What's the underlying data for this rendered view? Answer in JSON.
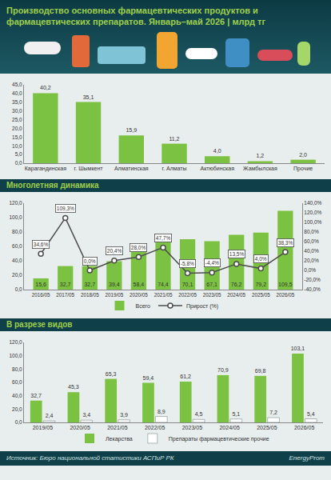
{
  "header": {
    "title": "Производство основных фармацевтических продуктов и фармацевтических препаратов. Январь–май 2026 | млрд тг"
  },
  "chart_data": [
    {
      "type": "bar",
      "categories": [
        "Карагандинская",
        "г. Шымкент",
        "Алматинская",
        "г. Алматы",
        "Актюбинская",
        "Жамбылская",
        "Прочие"
      ],
      "values": [
        40.2,
        35.1,
        15.9,
        11.2,
        4.0,
        1.2,
        2.0
      ],
      "value_labels": [
        "40,2",
        "35,1",
        "15,9",
        "11,2",
        "4,0",
        "1,2",
        "2,0"
      ],
      "color": "#7cc242",
      "ylim": [
        0,
        45
      ],
      "yticks": [
        {
          "value": 0,
          "label": "0,0"
        },
        {
          "value": 5,
          "label": "5,0"
        },
        {
          "value": 10,
          "label": "10,0"
        },
        {
          "value": 15,
          "label": "15,0"
        },
        {
          "value": 20,
          "label": "20,0"
        },
        {
          "value": 25,
          "label": "25,0"
        },
        {
          "value": 30,
          "label": "30,0"
        },
        {
          "value": 35,
          "label": "35,0"
        },
        {
          "value": 40,
          "label": "40,0"
        },
        {
          "value": 45,
          "label": "45,0"
        }
      ],
      "grid": false,
      "data_labels": true
    },
    {
      "type": "bar",
      "title": "Многолетняя динамика",
      "categories": [
        "2016/05",
        "2017/05",
        "2018/05",
        "2019/05",
        "2020/05",
        "2021/05",
        "2022/05",
        "2023/05",
        "2024/05",
        "2025/05",
        "2026/05"
      ],
      "series": [
        {
          "name": "Всего",
          "type": "bar",
          "color": "#7cc242",
          "values": [
            15.6,
            32.7,
            32.7,
            39.4,
            58.4,
            74.4,
            70.1,
            67.1,
            76.2,
            79.2,
            109.5
          ],
          "value_labels": [
            "15,6",
            "32,7",
            "32,7",
            "39,4",
            "58,4",
            "74,4",
            "70,1",
            "67,1",
            "76,2",
            "79,2",
            "109,5"
          ]
        },
        {
          "name": "Прирост (%)",
          "type": "line",
          "axis": "y2",
          "color": "#4d4d4d",
          "marker": "circle",
          "values": [
            34.6,
            109.3,
            0.0,
            20.4,
            28.0,
            47.7,
            -5.8,
            -4.4,
            13.5,
            4.0,
            38.3
          ],
          "value_labels": [
            "34,6%",
            "109,3%",
            "0,0%",
            "20,4%",
            "28,0%",
            "47,7%",
            "-5,8%",
            "-4,4%",
            "13,5%",
            "4,0%",
            "38,3%"
          ]
        }
      ],
      "ylim": [
        0,
        120
      ],
      "yticks": [
        {
          "value": 0,
          "label": "0,0"
        },
        {
          "value": 20,
          "label": "20,0"
        },
        {
          "value": 40,
          "label": "40,0"
        },
        {
          "value": 60,
          "label": "60,0"
        },
        {
          "value": 80,
          "label": "80,0"
        },
        {
          "value": 100,
          "label": "100,0"
        },
        {
          "value": 120,
          "label": "120,0"
        }
      ],
      "y2lim": [
        -40,
        140
      ],
      "y2ticks": [
        {
          "value": -40,
          "label": "-40,0%"
        },
        {
          "value": -20,
          "label": "-20,0%"
        },
        {
          "value": 0,
          "label": "0,0%"
        },
        {
          "value": 20,
          "label": "20,0%"
        },
        {
          "value": 40,
          "label": "40,0%"
        },
        {
          "value": 60,
          "label": "60,0%"
        },
        {
          "value": 80,
          "label": "80,0%"
        },
        {
          "value": 100,
          "label": "100,0%"
        },
        {
          "value": 120,
          "label": "120,0%"
        },
        {
          "value": 140,
          "label": "140,0%"
        }
      ],
      "legend": "bottom",
      "grid": false,
      "data_labels": true
    },
    {
      "type": "bar",
      "title": "В разрезе видов",
      "categories": [
        "2019/05",
        "2020/05",
        "2021/05",
        "2022/05",
        "2023/05",
        "2024/05",
        "2025/05",
        "2026/05"
      ],
      "series": [
        {
          "name": "Лекарства",
          "color": "#7cc242",
          "values": [
            32.7,
            45.3,
            65.3,
            59.4,
            61.2,
            70.9,
            69.8,
            103.1
          ],
          "value_labels": [
            "32,7",
            "45,3",
            "65,3",
            "59,4",
            "61,2",
            "70,9",
            "69,8",
            "103,1"
          ]
        },
        {
          "name": "Препараты фармацевтические прочие",
          "color": "#ffffff",
          "values": [
            2.4,
            3.4,
            3.9,
            8.9,
            4.5,
            5.1,
            7.2,
            5.4
          ],
          "value_labels": [
            "2,4",
            "3,4",
            "3,9",
            "8,9",
            "4,5",
            "5,1",
            "7,2",
            "5,4"
          ]
        }
      ],
      "ylim": [
        0,
        120
      ],
      "yticks": [
        {
          "value": 0,
          "label": "0,0"
        },
        {
          "value": 20,
          "label": "20,0"
        },
        {
          "value": 40,
          "label": "40,0"
        },
        {
          "value": 60,
          "label": "60,0"
        },
        {
          "value": 80,
          "label": "80,0"
        },
        {
          "value": 100,
          "label": "100,0"
        },
        {
          "value": 120,
          "label": "120,0"
        }
      ],
      "legend": "bottom",
      "grid": false,
      "data_labels": true
    }
  ],
  "footer": {
    "source": "Источник: Бюро национальной статистики АСПиР РК",
    "brand": "EnergyProm"
  }
}
